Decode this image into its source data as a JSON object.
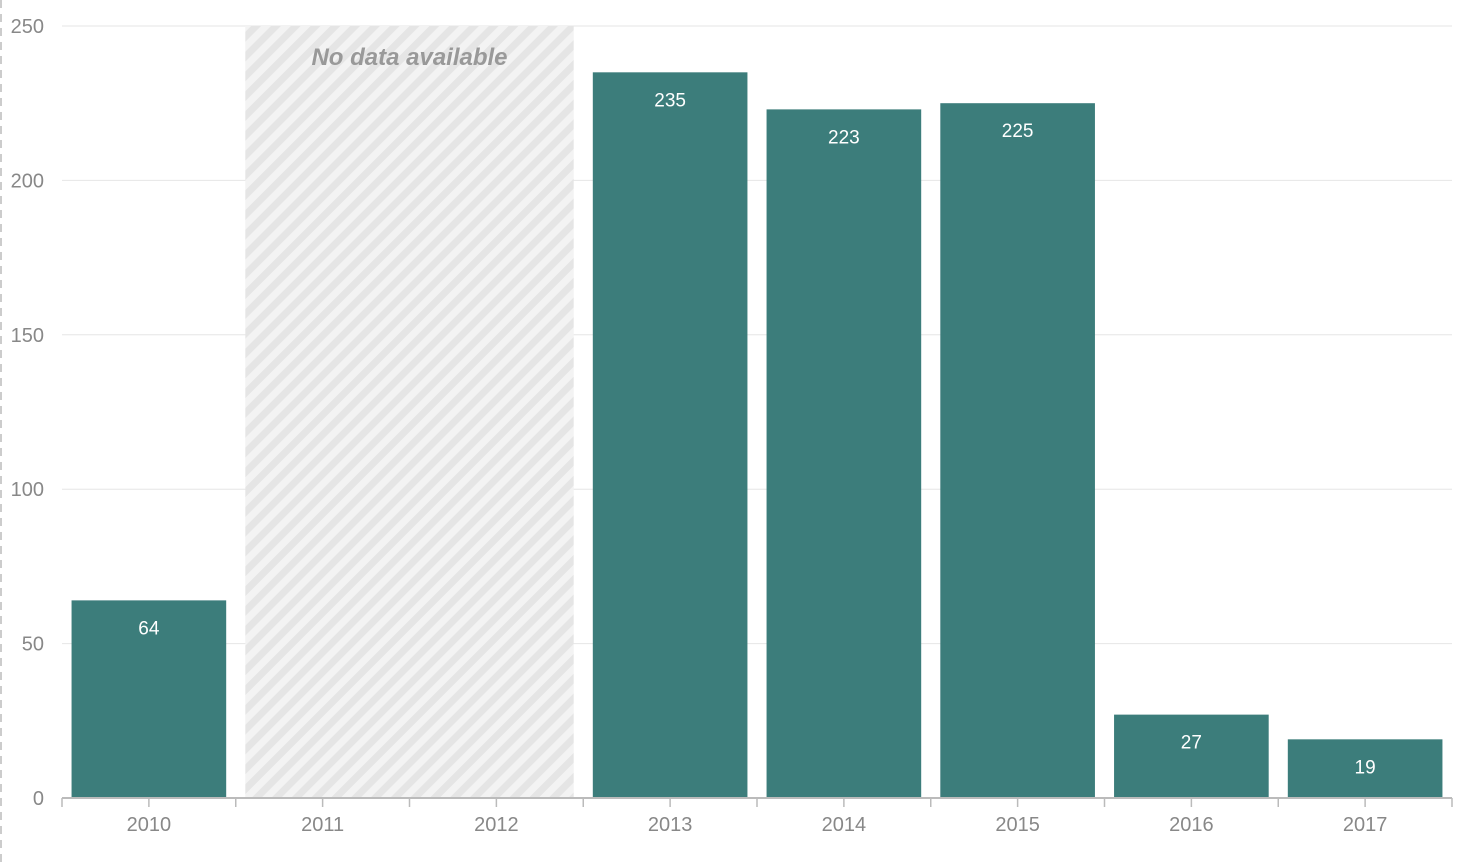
{
  "chart_data": {
    "type": "bar",
    "categories": [
      "2010",
      "2011",
      "2012",
      "2013",
      "2014",
      "2015",
      "2016",
      "2017"
    ],
    "values": [
      64,
      null,
      null,
      235,
      223,
      225,
      27,
      19
    ],
    "ylim": [
      0,
      250
    ],
    "yticks": [
      "0",
      "50",
      "100",
      "150",
      "200",
      "250"
    ],
    "no_data_label": "No data available",
    "no_data_categories": [
      "2011",
      "2012"
    ],
    "bar_color": "#3c7d7b",
    "grid": true,
    "legend": "none"
  }
}
